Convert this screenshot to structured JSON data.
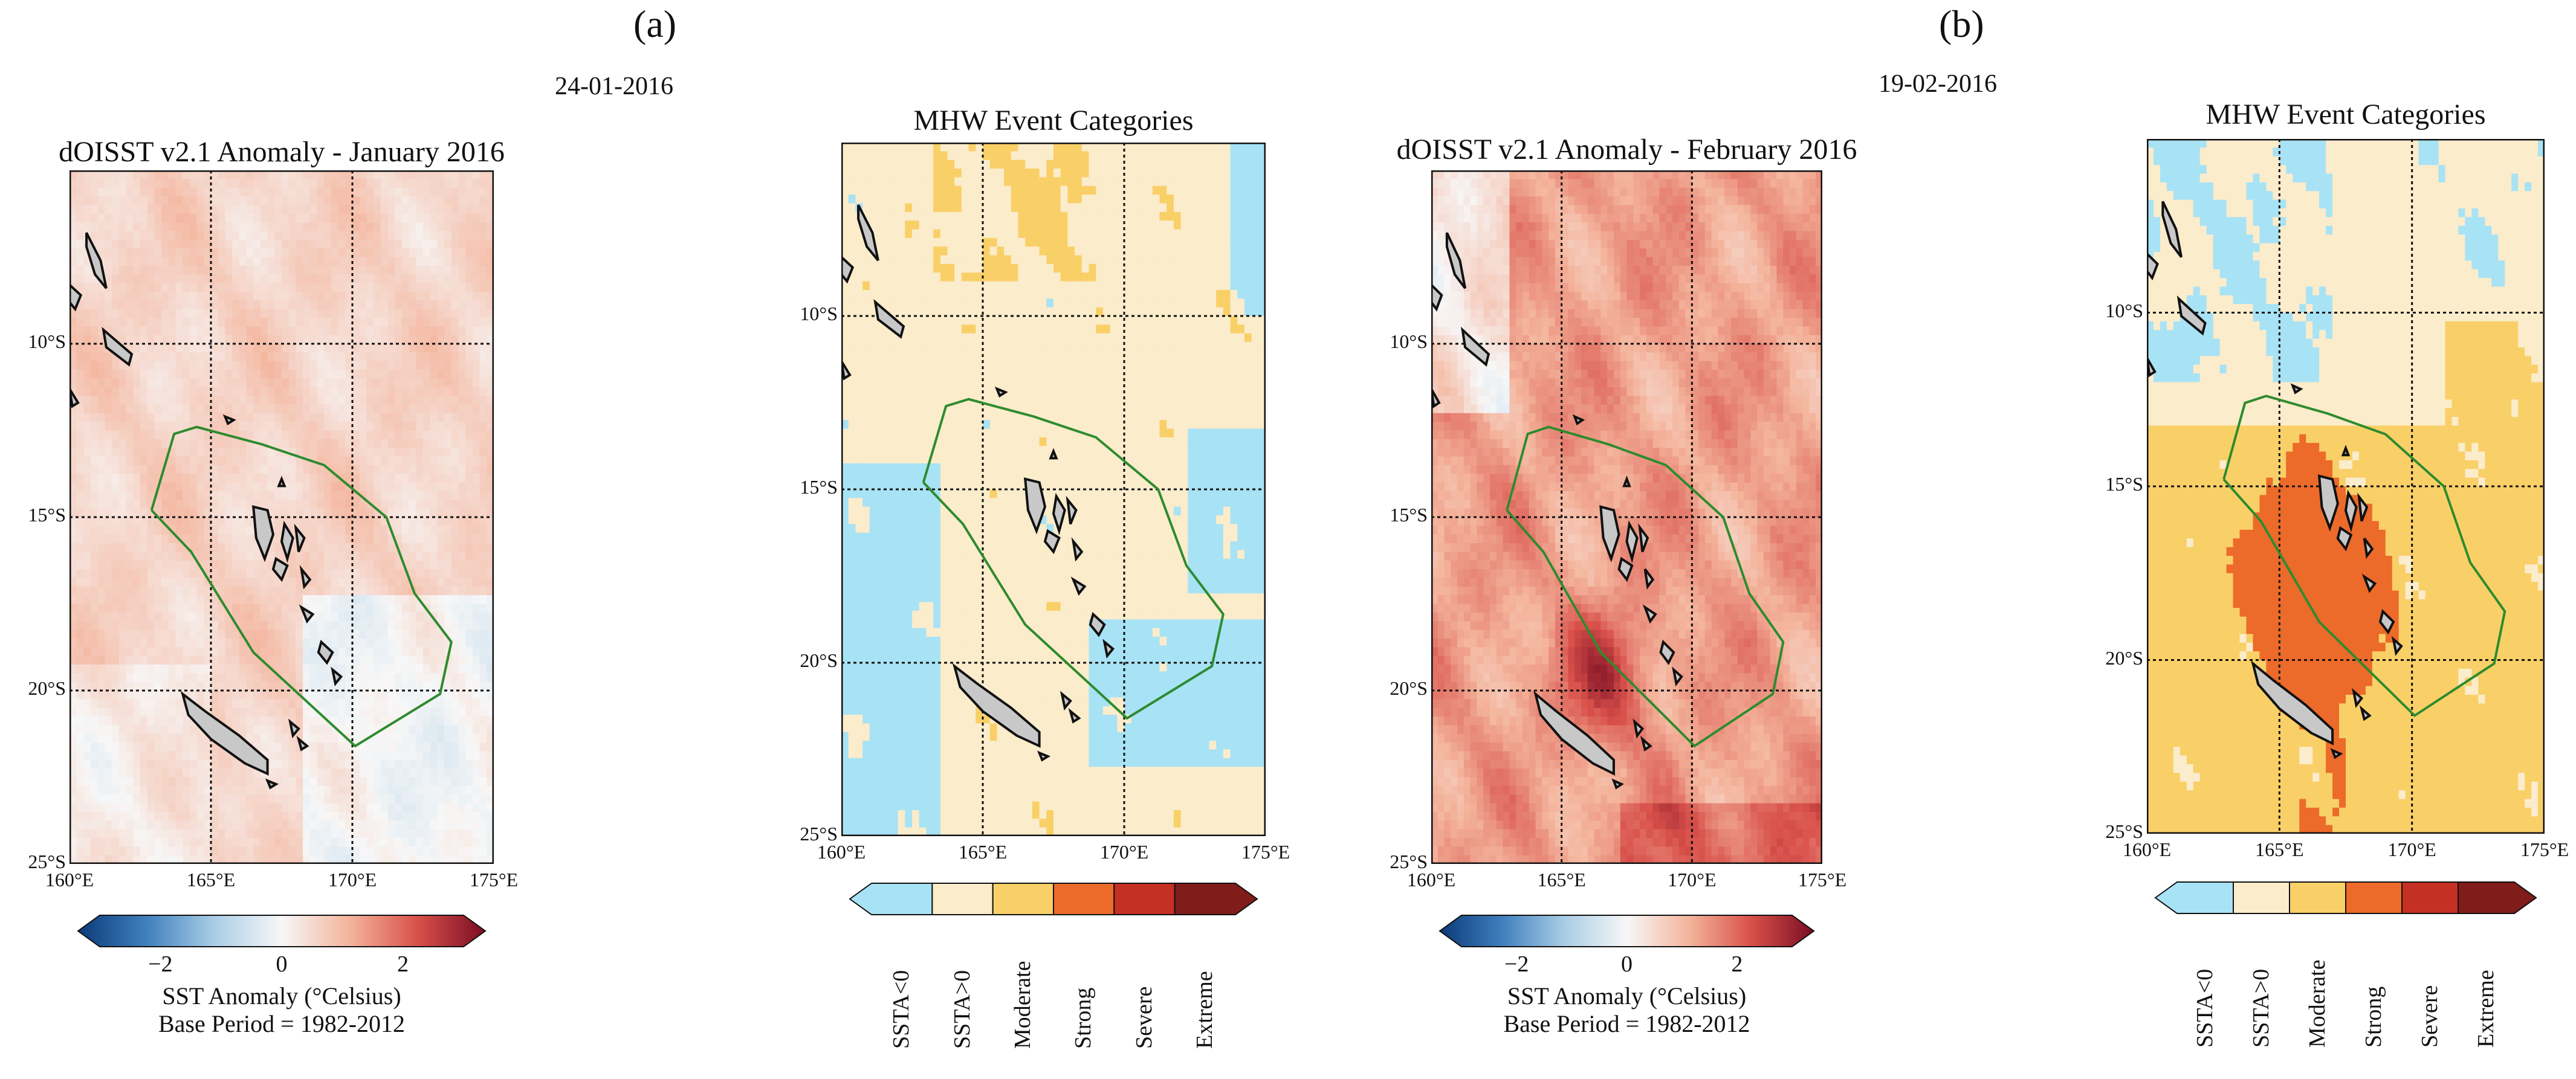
{
  "panels": {
    "a": {
      "letter": "(a)",
      "date": "24-01-2016"
    },
    "b": {
      "letter": "(b)",
      "date": "19-02-2016"
    }
  },
  "maps": [
    {
      "id": "a-anomaly",
      "kind": "anomaly",
      "title": "dOISST v2.1 Anomaly - January 2016"
    },
    {
      "id": "a-categories",
      "kind": "categories",
      "title": "MHW Event Categories"
    },
    {
      "id": "b-anomaly",
      "kind": "anomaly",
      "title": "dOISST v2.1 Anomaly - February 2016"
    },
    {
      "id": "b-categories",
      "kind": "categories",
      "title": "MHW Event Categories"
    }
  ],
  "axes": {
    "lat_ticks": [
      "10°S",
      "15°S",
      "20°S",
      "25°S"
    ],
    "lon_ticks": [
      "160°E",
      "165°E",
      "170°E",
      "175°E"
    ],
    "lat_range": [
      -5,
      -25
    ],
    "lon_range": [
      160,
      175
    ]
  },
  "anomaly_colorbar": {
    "ticks": [
      "−2",
      "0",
      "2"
    ],
    "range": [
      -3,
      3
    ],
    "label_line1": "SST Anomaly (°Celsius)",
    "label_line2": "Base Period = 1982-2012",
    "colors": [
      "#0b3b78",
      "#3f7fbd",
      "#a9cde6",
      "#f7f7f7",
      "#f4b49c",
      "#d8504a",
      "#7a0d23"
    ]
  },
  "category_colorbar": {
    "categories": [
      {
        "label": "SSTA<0",
        "color": "#a8e2f5"
      },
      {
        "label": "SSTA>0",
        "color": "#fbeccb"
      },
      {
        "label": "Moderate",
        "color": "#f9d068"
      },
      {
        "label": "Strong",
        "color": "#ec6a2a"
      },
      {
        "label": "Severe",
        "color": "#c53025"
      },
      {
        "label": "Extreme",
        "color": "#801c19"
      }
    ]
  }
}
